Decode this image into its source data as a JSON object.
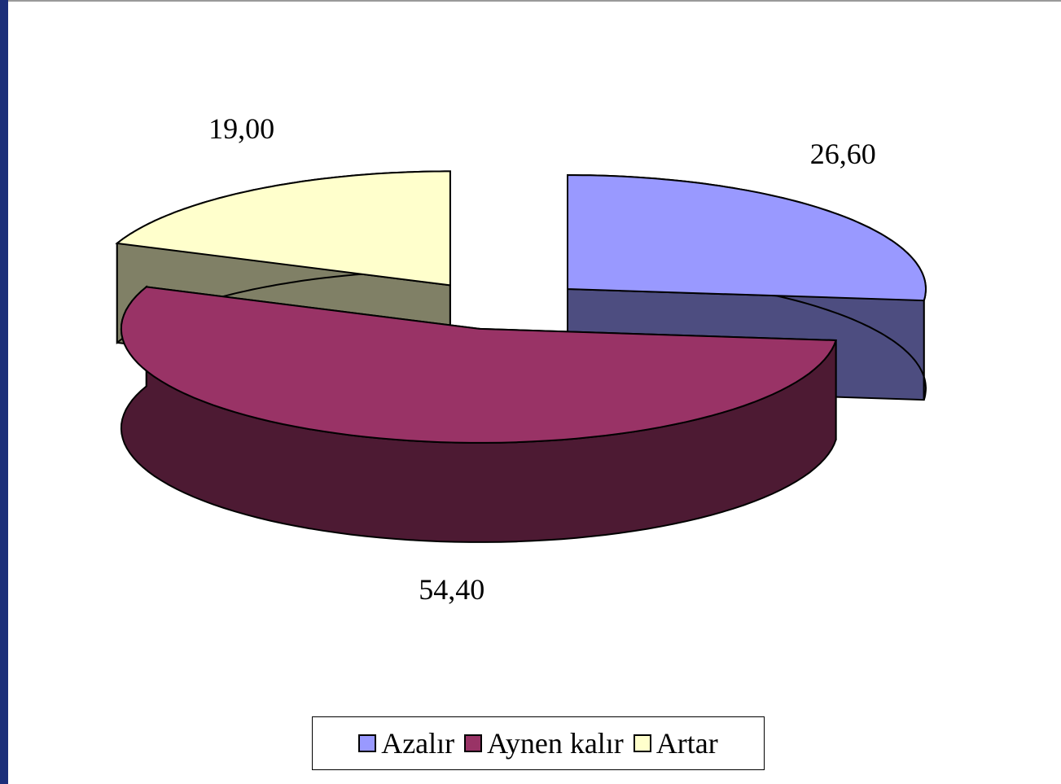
{
  "chart_data": {
    "type": "pie",
    "categories": [
      "Azalır",
      "Aynen kalır",
      "Artar"
    ],
    "values": [
      26.6,
      54.4,
      19.0
    ],
    "value_labels": [
      "26,60",
      "54,40",
      "19,00"
    ],
    "colors": [
      "#9999ff",
      "#993366",
      "#ffffcc"
    ],
    "legend": "bottom"
  }
}
